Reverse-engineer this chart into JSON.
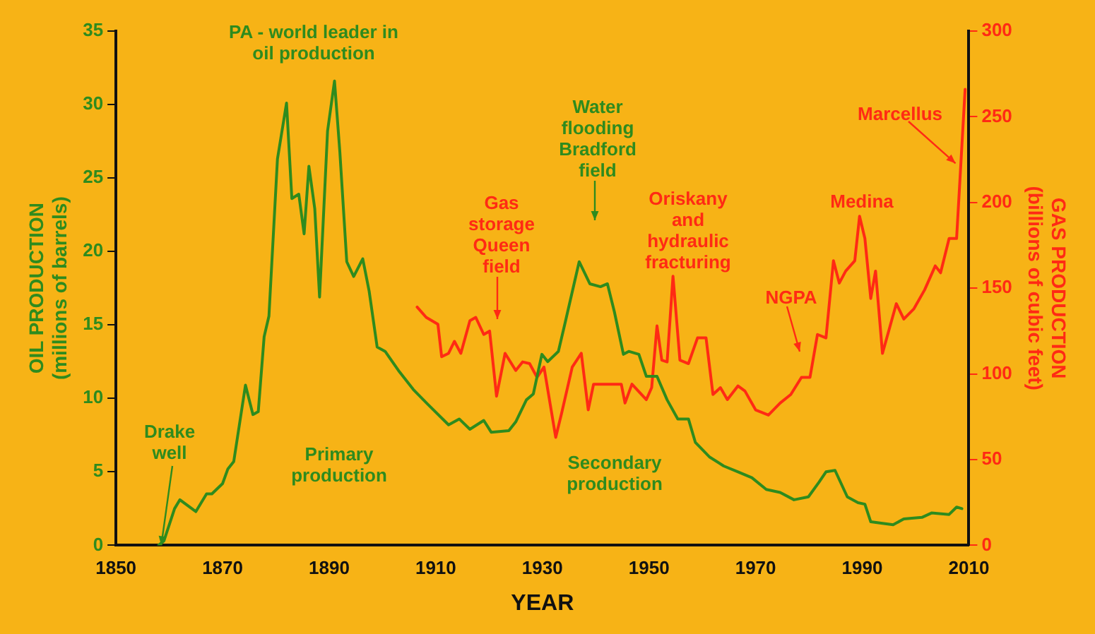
{
  "chart_data": {
    "type": "line",
    "xlabel": "YEAR",
    "ylabel": "OIL PRODUCTION (millions of barrels)",
    "y2label": "GAS PRODUCTION (billions of cubic feet)",
    "xlim": [
      1850,
      2010
    ],
    "xticks": [
      1850,
      1870,
      1890,
      1910,
      1930,
      1950,
      1970,
      1990,
      2010
    ],
    "ylim": [
      0,
      35
    ],
    "yticks": [
      0,
      5,
      10,
      15,
      20,
      25,
      30,
      35
    ],
    "y2lim": [
      0,
      300
    ],
    "y2ticks": [
      0,
      50,
      100,
      150,
      200,
      250,
      300
    ],
    "grid": false,
    "legend": false,
    "marker": "none",
    "line_style": "solid",
    "series": [
      {
        "color": "#2e8b1e",
        "x": [
          1858,
          1859,
          1861,
          1862,
          1865,
          1867,
          1868,
          1870,
          1871,
          1872.1,
          1874.3,
          1875.7,
          1876.7,
          1877.8,
          1878.7,
          1880.3,
          1882,
          1883,
          1884.3,
          1885.3,
          1886.2,
          1887.3,
          1888.2,
          1889.7,
          1891,
          1892,
          1893.3,
          1894.6,
          1896.3,
          1897.5,
          1899,
          1900.5,
          1903.2,
          1905.8,
          1908.5,
          1912.4,
          1914.4,
          1916.4,
          1919,
          1920.4,
          1923.7,
          1925,
          1927,
          1928.3,
          1929.9,
          1931,
          1933,
          1934.3,
          1936.9,
          1938.9,
          1940.9,
          1942.2,
          1943.5,
          1945.2,
          1946.2,
          1948.1,
          1949.5,
          1951.5,
          1953.4,
          1955.4,
          1957.4,
          1958.7,
          1961.4,
          1964,
          1966.7,
          1969.3,
          1972,
          1974.6,
          1977.2,
          1979.9,
          1981.9,
          1983.2,
          1984.9,
          1987.2,
          1989.2,
          1990.5,
          1991.6,
          1993.8,
          1995.8,
          1997.8,
          2001.2,
          2003,
          2006.3,
          2007.7,
          2008.7
        ],
        "values": [
          0,
          0.3,
          2.5,
          3.1,
          2.3,
          3.5,
          3.5,
          4.2,
          5.2,
          5.7,
          10.9,
          8.9,
          9.1,
          14.2,
          15.6,
          26.3,
          30.1,
          23.6,
          23.9,
          21.2,
          25.8,
          22.9,
          16.9,
          28.2,
          31.6,
          26.8,
          19.3,
          18.3,
          19.5,
          17.3,
          13.5,
          13.2,
          11.8,
          10.6,
          9.6,
          8.2,
          8.6,
          7.9,
          8.5,
          7.7,
          7.8,
          8.4,
          9.9,
          10.3,
          13,
          12.5,
          13.2,
          15.2,
          19.3,
          17.8,
          17.6,
          17.8,
          15.9,
          13,
          13.2,
          13,
          11.5,
          11.5,
          9.9,
          8.6,
          8.6,
          7,
          6,
          5.4,
          5,
          4.6,
          3.8,
          3.6,
          3.1,
          3.3,
          4.3,
          5,
          5.1,
          3.3,
          2.9,
          2.8,
          1.6,
          1.5,
          1.4,
          1.8,
          1.9,
          2.2,
          2.1,
          2.6,
          2.5
        ]
      },
      {
        "color": "#ff2a14",
        "axis": "y2",
        "x": [
          1906.5,
          1908.2,
          1910.4,
          1911.1,
          1912.4,
          1913.5,
          1914.7,
          1916.4,
          1917.5,
          1919,
          1920.1,
          1921.4,
          1923,
          1925,
          1926.3,
          1927.6,
          1929,
          1930.3,
          1932.5,
          1933.6,
          1935.6,
          1937.3,
          1938.6,
          1939.6,
          1941.5,
          1944.8,
          1945.5,
          1946.8,
          1949.5,
          1950.5,
          1951.5,
          1952.4,
          1953.4,
          1954.5,
          1955.8,
          1957.4,
          1959.1,
          1960.7,
          1962,
          1963.4,
          1964.7,
          1966.7,
          1968,
          1970,
          1972.4,
          1974.6,
          1976.6,
          1978.6,
          1980.2,
          1981.6,
          1983.2,
          1984.6,
          1985.7,
          1986.9,
          1988.6,
          1989.5,
          1990.5,
          1991.6,
          1992.5,
          1993.8,
          1996.4,
          1997.8,
          1999.7,
          2001.7,
          2003.7,
          2004.7,
          2006.3,
          2007.7,
          2009.3
        ],
        "values": [
          139,
          133,
          129,
          110,
          112,
          119,
          112,
          131,
          133,
          123,
          125,
          87,
          112,
          102,
          107,
          106,
          98,
          104,
          63,
          77,
          104,
          112,
          79,
          94,
          94,
          94,
          83,
          94,
          85,
          92,
          128,
          108,
          107,
          157,
          108,
          106,
          121,
          121,
          88,
          92,
          85,
          93,
          90,
          79,
          76,
          83,
          88,
          98,
          98,
          123,
          121,
          166,
          153,
          160,
          166,
          192,
          179,
          144,
          160,
          112,
          141,
          132,
          138,
          149,
          163,
          159,
          179,
          179,
          266
        ]
      }
    ],
    "annotations": [
      {
        "text": "Drake well",
        "x": 1858.5,
        "y": 0
      },
      "PA - world leader in oil production",
      "Primary production",
      "Gas storage Queen field",
      "Water flooding Bradford field",
      "Secondary production",
      "Oriskany and hydraulic fracturing",
      "NGPA",
      "Medina",
      {
        "text": "Marcellus",
        "x": 2007.5,
        "y": 26
      }
    ]
  }
}
